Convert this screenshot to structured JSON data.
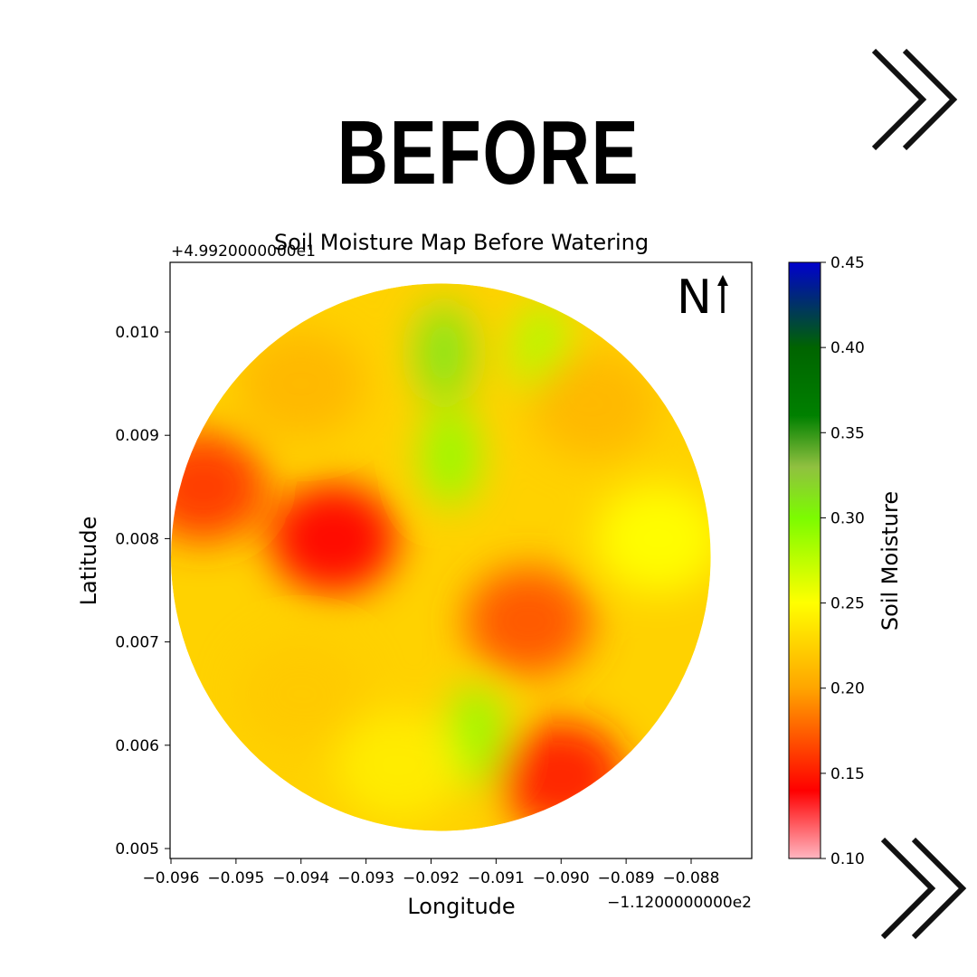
{
  "headline": "BEFORE",
  "north_label": "N",
  "icons": {
    "next_top": "double-chevron-right-icon",
    "next_bottom": "double-chevron-right-icon",
    "north_arrow": "arrow-up-icon"
  },
  "chart_data": {
    "type": "heatmap",
    "title": "Soil Moisture Map Before Watering",
    "xlabel": "Longitude",
    "ylabel": "Latitude",
    "x_offset_label": "−1.1200000000e2",
    "y_offset_label": "+4.9920000000e1",
    "x_ticks": [
      -0.096,
      -0.095,
      -0.094,
      -0.093,
      -0.092,
      -0.091,
      -0.09,
      -0.089,
      -0.088
    ],
    "x_tick_labels": [
      "−0.096",
      "−0.095",
      "−0.094",
      "−0.093",
      "−0.092",
      "−0.091",
      "−0.090",
      "−0.089",
      "−0.088"
    ],
    "y_ticks": [
      0.005,
      0.006,
      0.007,
      0.008,
      0.009,
      0.01
    ],
    "y_tick_labels": [
      "0.005",
      "0.006",
      "0.007",
      "0.008",
      "0.009",
      "0.010"
    ],
    "xlim": [
      -0.096,
      -0.087
    ],
    "ylim": [
      0.0049,
      0.0106
    ],
    "field": {
      "center": [
        -0.09185,
        0.00782
      ],
      "radius_lon": 0.00415,
      "radius_lat": 0.00265
    },
    "colorbar": {
      "label": "Soil Moisture",
      "range": [
        0.1,
        0.45
      ],
      "ticks": [
        0.1,
        0.15,
        0.2,
        0.25,
        0.3,
        0.35,
        0.4,
        0.45
      ],
      "tick_labels": [
        "0.10",
        "0.15",
        "0.20",
        "0.25",
        "0.30",
        "0.35",
        "0.40",
        "0.45"
      ],
      "stops": [
        {
          "value": 0.1,
          "color": "#ffb6c1"
        },
        {
          "value": 0.14,
          "color": "#ff0000"
        },
        {
          "value": 0.2,
          "color": "#ffa500"
        },
        {
          "value": 0.25,
          "color": "#ffff00"
        },
        {
          "value": 0.3,
          "color": "#7cfc00"
        },
        {
          "value": 0.33,
          "color": "#90c040"
        },
        {
          "value": 0.36,
          "color": "#008000"
        },
        {
          "value": 0.4,
          "color": "#006400"
        },
        {
          "value": 0.45,
          "color": "#0000cd"
        }
      ]
    },
    "zones": [
      {
        "region": "north-center strip",
        "lon": -0.0918,
        "lat": 0.0098,
        "value": 0.31
      },
      {
        "region": "north-center lower strip",
        "lon": -0.0917,
        "lat": 0.0088,
        "value": 0.29
      },
      {
        "region": "north-east strip",
        "lon": -0.0903,
        "lat": 0.0098,
        "value": 0.28
      },
      {
        "region": "west edge",
        "lon": -0.0955,
        "lat": 0.0085,
        "value": 0.16
      },
      {
        "region": "west-central",
        "lon": -0.0935,
        "lat": 0.008,
        "value": 0.14
      },
      {
        "region": "north-west",
        "lon": -0.094,
        "lat": 0.0095,
        "value": 0.21
      },
      {
        "region": "north-east",
        "lon": -0.0895,
        "lat": 0.0093,
        "value": 0.21
      },
      {
        "region": "east",
        "lon": -0.0885,
        "lat": 0.008,
        "value": 0.25
      },
      {
        "region": "center-east",
        "lon": -0.0905,
        "lat": 0.0072,
        "value": 0.17
      },
      {
        "region": "south strip",
        "lon": -0.0913,
        "lat": 0.0061,
        "value": 0.29
      },
      {
        "region": "south-east",
        "lon": -0.09,
        "lat": 0.0057,
        "value": 0.15
      },
      {
        "region": "south-west",
        "lon": -0.094,
        "lat": 0.0065,
        "value": 0.22
      },
      {
        "region": "south",
        "lon": -0.0925,
        "lat": 0.0058,
        "value": 0.24
      }
    ]
  }
}
